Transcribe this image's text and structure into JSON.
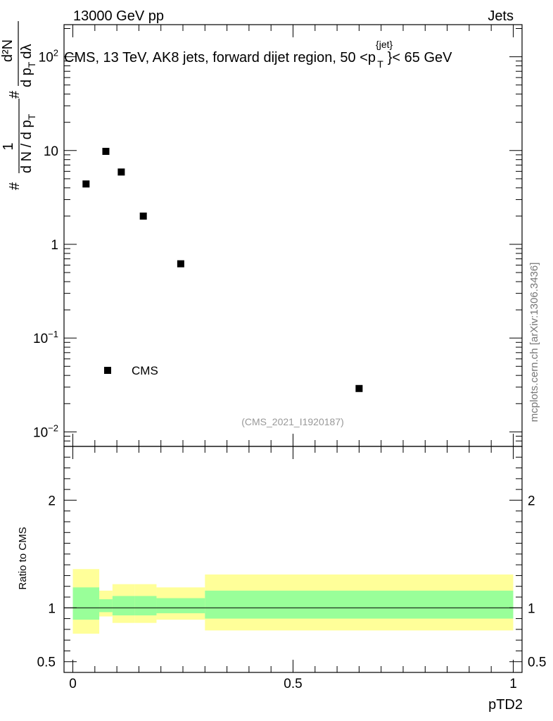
{
  "header": {
    "left": "13000 GeV pp",
    "right": "Jets"
  },
  "side_text": "mcplots.cern.ch [arXiv:1306.3436]",
  "analysis_tag": "(CMS_2021_I1920187)",
  "colors": {
    "band_outer": "#ffff99",
    "band_inner": "#99ff99",
    "marker": "#000000"
  },
  "chart_data": [
    {
      "type": "scatter",
      "panel": "main",
      "title_parts": {
        "before": "CMS, 13 TeV, AK8 jets, forward dijet region, 50 <p",
        "sup": "{jet}",
        "sub": "T",
        "after": "}< 65 GeV"
      },
      "ylabel_parts": {
        "hash": "#",
        "one": "1",
        "den": "d N / d p",
        "den_sub": "T",
        "hash2": "#",
        "num2": "d²N",
        "den2": "d p",
        "den2_sub": "T",
        "den2_end": "dλ"
      },
      "yscale": "log",
      "ylim": [
        0.007,
        220
      ],
      "xlim": [
        -0.02,
        1.02
      ],
      "yticks": [
        {
          "value": 100,
          "mant": "10",
          "exp": "2"
        },
        {
          "value": 10,
          "mant": "10",
          "exp": ""
        },
        {
          "value": 1,
          "mant": "1",
          "exp": ""
        },
        {
          "value": 0.1,
          "mant": "10",
          "exp": "−1"
        },
        {
          "value": 0.01,
          "mant": "10",
          "exp": "−2"
        }
      ],
      "legend": {
        "label": "CMS",
        "position": "lower-left"
      },
      "series": [
        {
          "name": "CMS",
          "x": [
            0.03,
            0.075,
            0.11,
            0.16,
            0.245,
            0.65
          ],
          "y": [
            4.4,
            9.8,
            5.9,
            2.0,
            0.62,
            0.029
          ]
        }
      ]
    },
    {
      "type": "area",
      "panel": "ratio",
      "ylabel": "Ratio to CMS",
      "xlabel": "pTD2",
      "ylim": [
        0.4,
        2.5
      ],
      "xlim": [
        -0.02,
        1.02
      ],
      "xticks": [
        {
          "value": 0,
          "label": "0"
        },
        {
          "value": 0.5,
          "label": "0.5"
        },
        {
          "value": 1,
          "label": "1"
        }
      ],
      "yticks": [
        {
          "value": 0.5,
          "label": "0.5"
        },
        {
          "value": 1,
          "label": "1"
        },
        {
          "value": 2,
          "label": "2"
        }
      ],
      "reference_line": 1,
      "bins": [
        {
          "lo": 0.0,
          "hi": 0.06,
          "outer": [
            0.76,
            1.36
          ],
          "inner": [
            0.89,
            1.19
          ]
        },
        {
          "lo": 0.06,
          "hi": 0.09,
          "outer": [
            0.92,
            1.16
          ],
          "inner": [
            0.96,
            1.08
          ]
        },
        {
          "lo": 0.09,
          "hi": 0.14,
          "outer": [
            0.86,
            1.22
          ],
          "inner": [
            0.93,
            1.11
          ]
        },
        {
          "lo": 0.14,
          "hi": 0.19,
          "outer": [
            0.86,
            1.22
          ],
          "inner": [
            0.93,
            1.11
          ]
        },
        {
          "lo": 0.19,
          "hi": 0.3,
          "outer": [
            0.89,
            1.19
          ],
          "inner": [
            0.95,
            1.09
          ]
        },
        {
          "lo": 0.3,
          "hi": 1.0,
          "outer": [
            0.79,
            1.31
          ],
          "inner": [
            0.9,
            1.16
          ]
        }
      ]
    }
  ]
}
